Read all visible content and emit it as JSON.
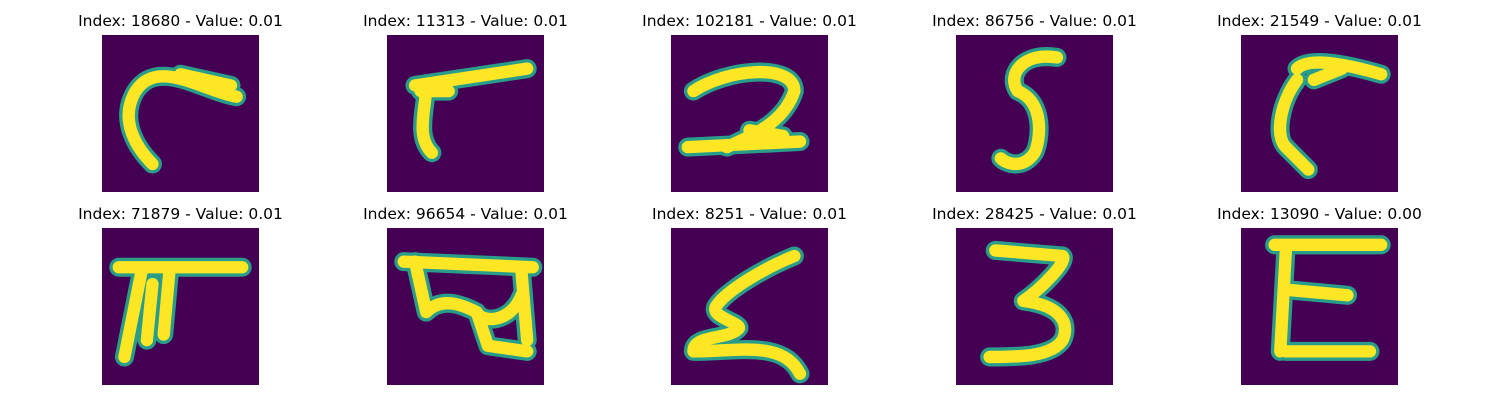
{
  "panels": [
    {
      "title": "Index: 18680 - Value: 0.01"
    },
    {
      "title": "Index: 11313 - Value: 0.01"
    },
    {
      "title": "Index: 102181 - Value: 0.01"
    },
    {
      "title": "Index: 86756 - Value: 0.01"
    },
    {
      "title": "Index: 21549 - Value: 0.01"
    },
    {
      "title": "Index: 71879 - Value: 0.01"
    },
    {
      "title": "Index: 96654 - Value: 0.01"
    },
    {
      "title": "Index: 8251 - Value: 0.01"
    },
    {
      "title": "Index: 28425 - Value: 0.01"
    },
    {
      "title": "Index: 13090 - Value: 0.00"
    }
  ]
}
